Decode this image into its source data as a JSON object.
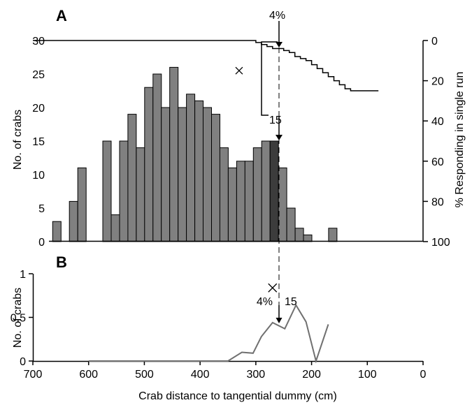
{
  "chart_data": [
    {
      "panel_label": "A",
      "type": "bar",
      "x_unit": "cm",
      "xlim": [
        700,
        0
      ],
      "ylim": [
        0,
        30
      ],
      "ylabel": "No. of crabs",
      "yticks": [
        "0",
        "5",
        "10",
        "15",
        "20",
        "25",
        "30"
      ],
      "bin_width": 15,
      "bins": [
        {
          "x": 657,
          "value": 3
        },
        {
          "x": 627,
          "value": 6
        },
        {
          "x": 612,
          "value": 11
        },
        {
          "x": 597,
          "value": 0
        },
        {
          "x": 582,
          "value": 0
        },
        {
          "x": 567,
          "value": 15
        },
        {
          "x": 552,
          "value": 4
        },
        {
          "x": 537,
          "value": 15
        },
        {
          "x": 522,
          "value": 19
        },
        {
          "x": 507,
          "value": 14
        },
        {
          "x": 492,
          "value": 23
        },
        {
          "x": 477,
          "value": 25
        },
        {
          "x": 462,
          "value": 20
        },
        {
          "x": 447,
          "value": 26
        },
        {
          "x": 432,
          "value": 20
        },
        {
          "x": 417,
          "value": 22
        },
        {
          "x": 402,
          "value": 21
        },
        {
          "x": 387,
          "value": 20
        },
        {
          "x": 372,
          "value": 19
        },
        {
          "x": 357,
          "value": 14
        },
        {
          "x": 342,
          "value": 11
        },
        {
          "x": 327,
          "value": 12
        },
        {
          "x": 312,
          "value": 12
        },
        {
          "x": 297,
          "value": 14
        },
        {
          "x": 282,
          "value": 15
        },
        {
          "x": 267,
          "value": 15,
          "highlight": true
        },
        {
          "x": 252,
          "value": 11
        },
        {
          "x": 237,
          "value": 5
        },
        {
          "x": 222,
          "value": 2
        },
        {
          "x": 207,
          "value": 1
        },
        {
          "x": 192,
          "value": 0
        },
        {
          "x": 177,
          "value": 0
        },
        {
          "x": 162,
          "value": 2
        }
      ],
      "secondary_axis": {
        "label": "% Responding in single run",
        "ylim": [
          0,
          100
        ],
        "inverted": true,
        "ticks": [
          "0",
          "20",
          "40",
          "60",
          "80",
          "100"
        ]
      },
      "response_curve": {
        "x": [
          700,
          500,
          350,
          300,
          290,
          280,
          270,
          260,
          250,
          240,
          230,
          220,
          210,
          200,
          190,
          180,
          170,
          160,
          150,
          140,
          130,
          80
        ],
        "y": [
          0,
          0,
          0,
          1,
          2,
          3,
          4,
          4,
          5,
          6,
          8,
          9,
          10,
          12,
          14,
          16,
          18,
          20,
          22,
          24,
          25,
          25
        ]
      },
      "marker_cross": {
        "x": 330,
        "y": 15
      },
      "annotations": [
        "4%",
        "15"
      ],
      "highlight_x": 270
    },
    {
      "panel_label": "B",
      "type": "line",
      "xlim": [
        700,
        0
      ],
      "ylim": [
        0,
        1
      ],
      "ylabel": "No. of crabs",
      "xlabel": "Crab distance to tangential dummy (cm)",
      "xticks": [
        "700",
        "600",
        "500",
        "400",
        "300",
        "200",
        "100",
        "0"
      ],
      "yticks": [
        "0",
        "0.5",
        "1"
      ],
      "series": [
        {
          "x": [
            600,
            500,
            450,
            400,
            350,
            325,
            305,
            290,
            270,
            248,
            228,
            210,
            192,
            170
          ],
          "y": [
            0,
            0,
            0,
            0,
            0,
            0.1,
            0.09,
            0.28,
            0.44,
            0.37,
            0.64,
            0.45,
            0,
            0.42
          ]
        }
      ],
      "marker_cross": {
        "x": 270,
        "y": 0.95
      },
      "annotations": [
        "4%",
        "15"
      ],
      "highlight_x": 270
    }
  ]
}
